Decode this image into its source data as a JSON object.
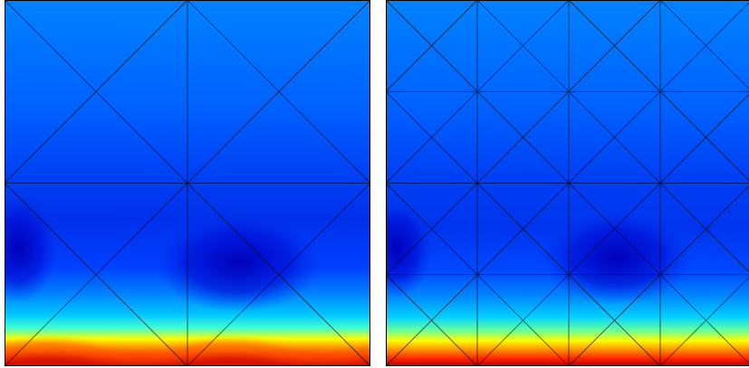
{
  "panels": [
    {
      "id": "coarse-mesh",
      "mesh_divisions": 2,
      "palette": "jet"
    },
    {
      "id": "refined-mesh",
      "mesh_divisions": 4,
      "palette": "jet"
    }
  ],
  "colors": {
    "mesh_line": "#000000",
    "background": "#ffffff",
    "jet_low": "#00008f",
    "jet_mid": "#00ffff",
    "jet_high": "#800000"
  }
}
